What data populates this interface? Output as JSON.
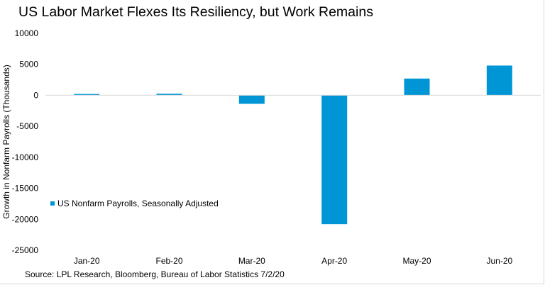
{
  "chart_data": {
    "type": "bar",
    "title": "US Labor Market Flexes Its Resiliency, but Work Remains",
    "ylabel": "Growth in Nonfarm Payrolls (Thousands)",
    "xlabel": "",
    "categories": [
      "Jan-20",
      "Feb-20",
      "Mar-20",
      "Apr-20",
      "May-20",
      "Jun-20"
    ],
    "series": [
      {
        "name": "US Nonfarm Payrolls, Seasonally Adjusted",
        "color": "#0096d6",
        "values": [
          214,
          251,
          -1373,
          -20787,
          2699,
          4800
        ]
      }
    ],
    "ylim": [
      -25000,
      10000
    ],
    "yticks": [
      10000,
      5000,
      0,
      -5000,
      -10000,
      -15000,
      -20000,
      -25000
    ],
    "grid": false,
    "legend": "left-middle"
  },
  "footer": {
    "source": "Source: LPL Research, Bloomberg, Bureau of Labor Statistics 7/2/20"
  }
}
